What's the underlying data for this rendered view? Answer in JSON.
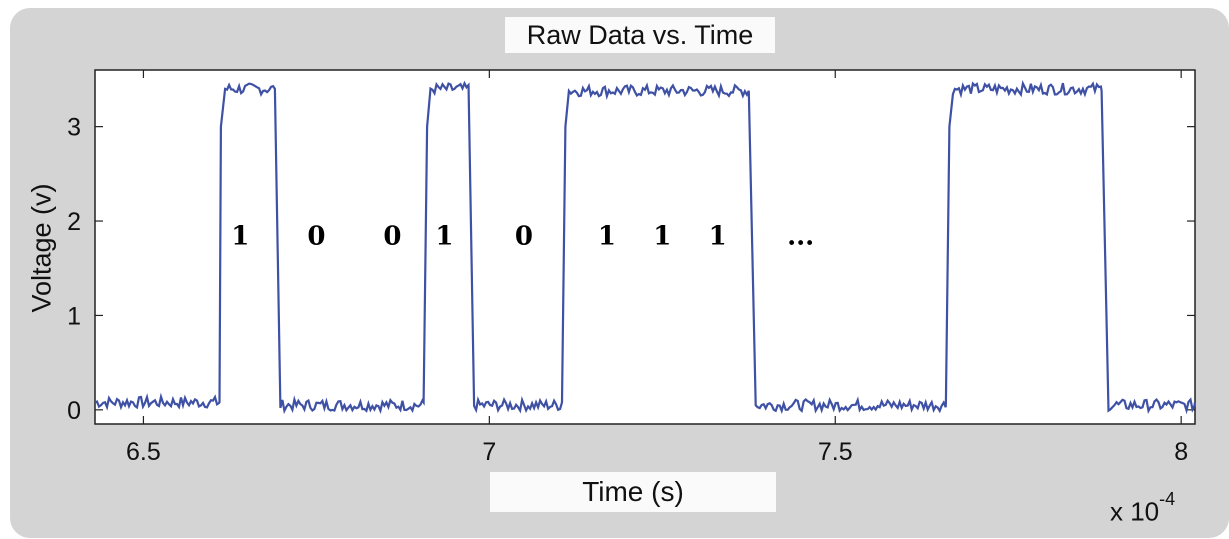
{
  "chart_data": {
    "type": "line",
    "title": "Raw Data vs. Time",
    "xlabel": "Time (s)",
    "ylabel": "Voltage (v)",
    "x_multiplier_label": "x 10",
    "x_multiplier_exponent": "-4",
    "xlim": [
      6.43,
      8.02
    ],
    "ylim": [
      -0.15,
      3.6
    ],
    "x_ticks": [
      6.5,
      7,
      7.5,
      8
    ],
    "x_tick_labels": [
      "6.5",
      "7",
      "7.5",
      "8"
    ],
    "y_ticks": [
      0,
      1,
      2,
      3
    ],
    "y_tick_labels": [
      "0",
      "1",
      "2",
      "3"
    ],
    "grid": false,
    "series": [
      {
        "color": "#3f51a5",
        "x": [
          6.43,
          6.61,
          6.612,
          6.618,
          6.69,
          6.698,
          6.905,
          6.91,
          6.915,
          6.97,
          6.978,
          7.105,
          7.11,
          7.115,
          7.375,
          7.385,
          7.66,
          7.665,
          7.67,
          7.885,
          7.895,
          8.02
        ],
        "y": [
          0.08,
          0.08,
          3.0,
          3.4,
          3.4,
          0.05,
          0.08,
          3.0,
          3.4,
          3.4,
          0.05,
          0.08,
          3.0,
          3.38,
          3.38,
          0.05,
          0.08,
          3.0,
          3.4,
          3.38,
          0.05,
          0.08
        ]
      }
    ],
    "annotations": [
      {
        "text": "1",
        "x": 6.64,
        "y": 1.75
      },
      {
        "text": "0",
        "x": 6.75,
        "y": 1.75
      },
      {
        "text": "0",
        "x": 6.86,
        "y": 1.75
      },
      {
        "text": "1",
        "x": 6.935,
        "y": 1.75
      },
      {
        "text": "0",
        "x": 7.05,
        "y": 1.75
      },
      {
        "text": "1",
        "x": 7.17,
        "y": 1.75
      },
      {
        "text": "1",
        "x": 7.25,
        "y": 1.75
      },
      {
        "text": "1",
        "x": 7.33,
        "y": 1.75
      },
      {
        "text": "...",
        "x": 7.45,
        "y": 1.75
      }
    ]
  }
}
